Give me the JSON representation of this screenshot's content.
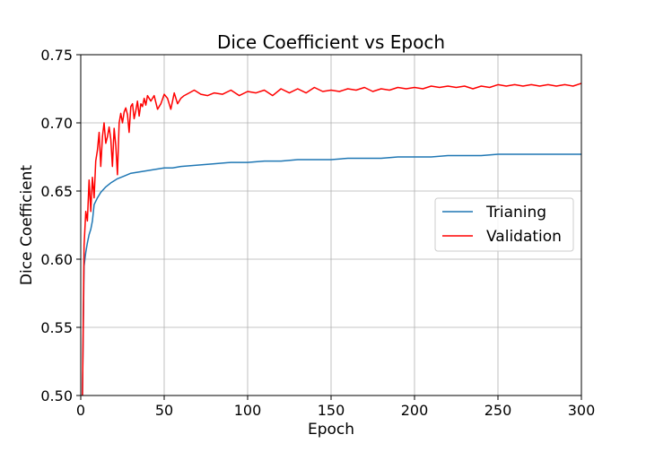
{
  "chart_data": {
    "type": "line",
    "title": "Dice Coefficient vs Epoch",
    "xlabel": "Epoch",
    "ylabel": "Dice Coefficient",
    "xlim": [
      0,
      300
    ],
    "ylim": [
      0.5,
      0.75
    ],
    "xticks": [
      0,
      50,
      100,
      150,
      200,
      250,
      300
    ],
    "yticks": [
      0.5,
      0.55,
      0.6,
      0.65,
      0.7,
      0.75
    ],
    "xtick_labels": [
      "0",
      "50",
      "100",
      "150",
      "200",
      "250",
      "300"
    ],
    "ytick_labels": [
      "0.50",
      "0.55",
      "0.60",
      "0.65",
      "0.70",
      "0.75"
    ],
    "grid": true,
    "legend_position": "center-right",
    "series": [
      {
        "name": "Trianing",
        "color": "#1f77b4",
        "x": [
          1,
          2,
          3,
          4,
          5,
          6,
          7,
          8,
          10,
          12,
          15,
          18,
          22,
          26,
          30,
          35,
          40,
          45,
          50,
          55,
          60,
          70,
          80,
          90,
          100,
          110,
          120,
          130,
          140,
          150,
          160,
          170,
          180,
          190,
          200,
          210,
          220,
          230,
          240,
          250,
          260,
          270,
          280,
          290,
          300
        ],
        "y": [
          0.5,
          0.595,
          0.605,
          0.612,
          0.618,
          0.622,
          0.628,
          0.64,
          0.645,
          0.649,
          0.653,
          0.656,
          0.659,
          0.661,
          0.663,
          0.664,
          0.665,
          0.666,
          0.667,
          0.667,
          0.668,
          0.669,
          0.67,
          0.671,
          0.671,
          0.672,
          0.672,
          0.673,
          0.673,
          0.673,
          0.674,
          0.674,
          0.674,
          0.675,
          0.675,
          0.675,
          0.676,
          0.676,
          0.676,
          0.677,
          0.677,
          0.677,
          0.677,
          0.677,
          0.677
        ]
      },
      {
        "name": "Validation",
        "color": "#ff0000",
        "x": [
          1,
          2,
          3,
          4,
          5,
          6,
          7,
          8,
          9,
          10,
          11,
          12,
          13,
          14,
          15,
          16,
          17,
          18,
          19,
          20,
          21,
          22,
          23,
          24,
          25,
          26,
          27,
          28,
          29,
          30,
          31,
          32,
          33,
          34,
          35,
          36,
          37,
          38,
          39,
          40,
          42,
          44,
          46,
          48,
          50,
          52,
          54,
          56,
          58,
          60,
          62,
          65,
          68,
          72,
          76,
          80,
          85,
          90,
          95,
          100,
          105,
          110,
          115,
          120,
          125,
          130,
          135,
          140,
          145,
          150,
          155,
          160,
          165,
          170,
          175,
          180,
          185,
          190,
          195,
          200,
          205,
          210,
          215,
          220,
          225,
          230,
          235,
          240,
          245,
          250,
          255,
          260,
          265,
          270,
          275,
          280,
          285,
          290,
          295,
          300
        ],
        "y": [
          0.5,
          0.61,
          0.635,
          0.628,
          0.658,
          0.635,
          0.66,
          0.645,
          0.672,
          0.68,
          0.693,
          0.668,
          0.69,
          0.7,
          0.685,
          0.69,
          0.697,
          0.688,
          0.668,
          0.696,
          0.683,
          0.662,
          0.7,
          0.707,
          0.7,
          0.708,
          0.711,
          0.706,
          0.693,
          0.712,
          0.714,
          0.703,
          0.709,
          0.716,
          0.705,
          0.714,
          0.712,
          0.718,
          0.713,
          0.72,
          0.716,
          0.72,
          0.71,
          0.714,
          0.721,
          0.718,
          0.71,
          0.722,
          0.714,
          0.718,
          0.72,
          0.722,
          0.724,
          0.721,
          0.72,
          0.722,
          0.721,
          0.724,
          0.72,
          0.723,
          0.722,
          0.724,
          0.72,
          0.725,
          0.722,
          0.725,
          0.722,
          0.726,
          0.723,
          0.724,
          0.723,
          0.725,
          0.724,
          0.726,
          0.723,
          0.725,
          0.724,
          0.726,
          0.725,
          0.726,
          0.725,
          0.727,
          0.726,
          0.727,
          0.726,
          0.727,
          0.725,
          0.727,
          0.726,
          0.728,
          0.727,
          0.728,
          0.727,
          0.728,
          0.727,
          0.728,
          0.727,
          0.728,
          0.727,
          0.729
        ]
      }
    ]
  }
}
